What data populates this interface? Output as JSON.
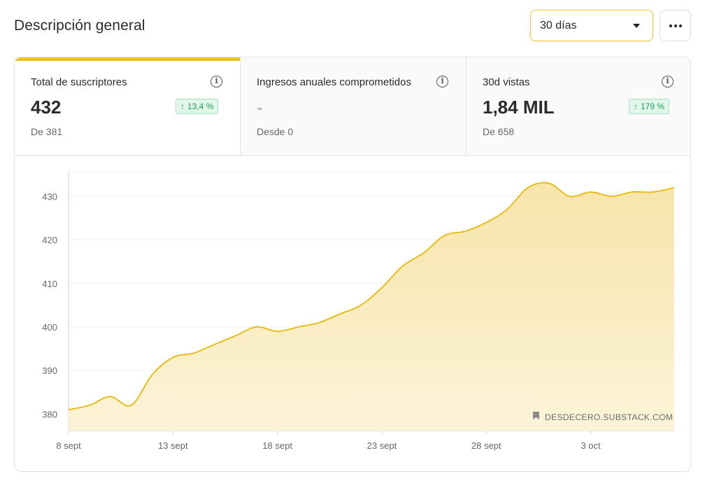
{
  "header": {
    "title": "Descripción general",
    "range_value": "30 días"
  },
  "stats": [
    {
      "label": "Total de suscriptores",
      "value": "432",
      "sub": "De 381",
      "badge": "13,4 %",
      "badge_arrow": "↑"
    },
    {
      "label": "Ingresos anuales comprometidos",
      "value": "-",
      "sub": "Desde 0"
    },
    {
      "label": "30d vistas",
      "value": "1,84 MIL",
      "sub": "De 658",
      "badge": "179 %",
      "badge_arrow": "↑"
    }
  ],
  "colors": {
    "accent": "#efc31d",
    "line": "#e9bc1b",
    "fill": "#f9e8b4",
    "positive": "#1c9f5c"
  },
  "watermark": "DESDECERO.SUBSTACK.COM",
  "chart_data": {
    "type": "area",
    "title": "",
    "xlabel": "",
    "ylabel": "",
    "ylim": [
      376.2,
      435.7
    ],
    "yticks": [
      380,
      390,
      400,
      410,
      420,
      430
    ],
    "xticks": [
      {
        "label": "8 sept",
        "day": 0
      },
      {
        "label": "13 sept",
        "day": 5
      },
      {
        "label": "18 sept",
        "day": 10
      },
      {
        "label": "23 sept",
        "day": 15
      },
      {
        "label": "28 sept",
        "day": 20
      },
      {
        "label": "3 oct",
        "day": 25
      }
    ],
    "x": [
      0,
      1,
      2,
      3,
      4,
      5,
      6,
      7,
      8,
      9,
      10,
      11,
      12,
      13,
      14,
      15,
      16,
      17,
      18,
      19,
      20,
      21,
      22,
      23,
      24,
      25,
      26,
      27,
      28,
      29
    ],
    "series": [
      {
        "name": "Suscriptores",
        "values": [
          381,
          382,
          384,
          382,
          389,
          393,
          394,
          396,
          398,
          400,
          399,
          400,
          401,
          403,
          405,
          409,
          414,
          417,
          421,
          422,
          424,
          427,
          432,
          433,
          430,
          431,
          430,
          431,
          431,
          432
        ]
      }
    ],
    "grid": true
  }
}
